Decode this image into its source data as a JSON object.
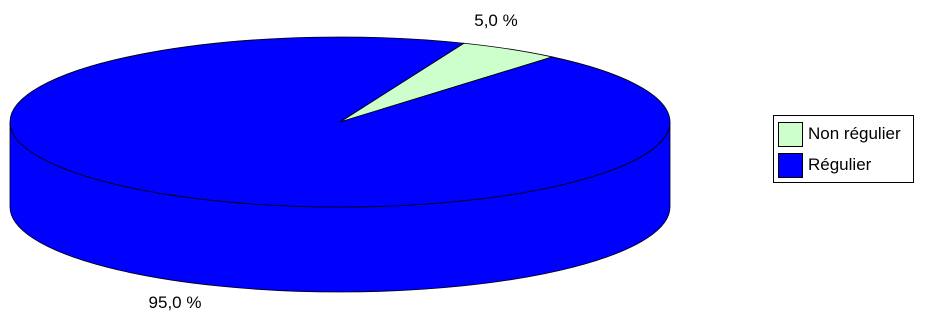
{
  "chart_data": {
    "type": "pie",
    "title": "",
    "labels": [
      "Non régulier",
      "Régulier"
    ],
    "values": [
      5.0,
      95.0
    ],
    "value_labels": [
      "5,0 %",
      "95,0 %"
    ],
    "colors": [
      "#ccffcc",
      "#0000ff"
    ],
    "style": "3d",
    "legend_position": "right"
  }
}
